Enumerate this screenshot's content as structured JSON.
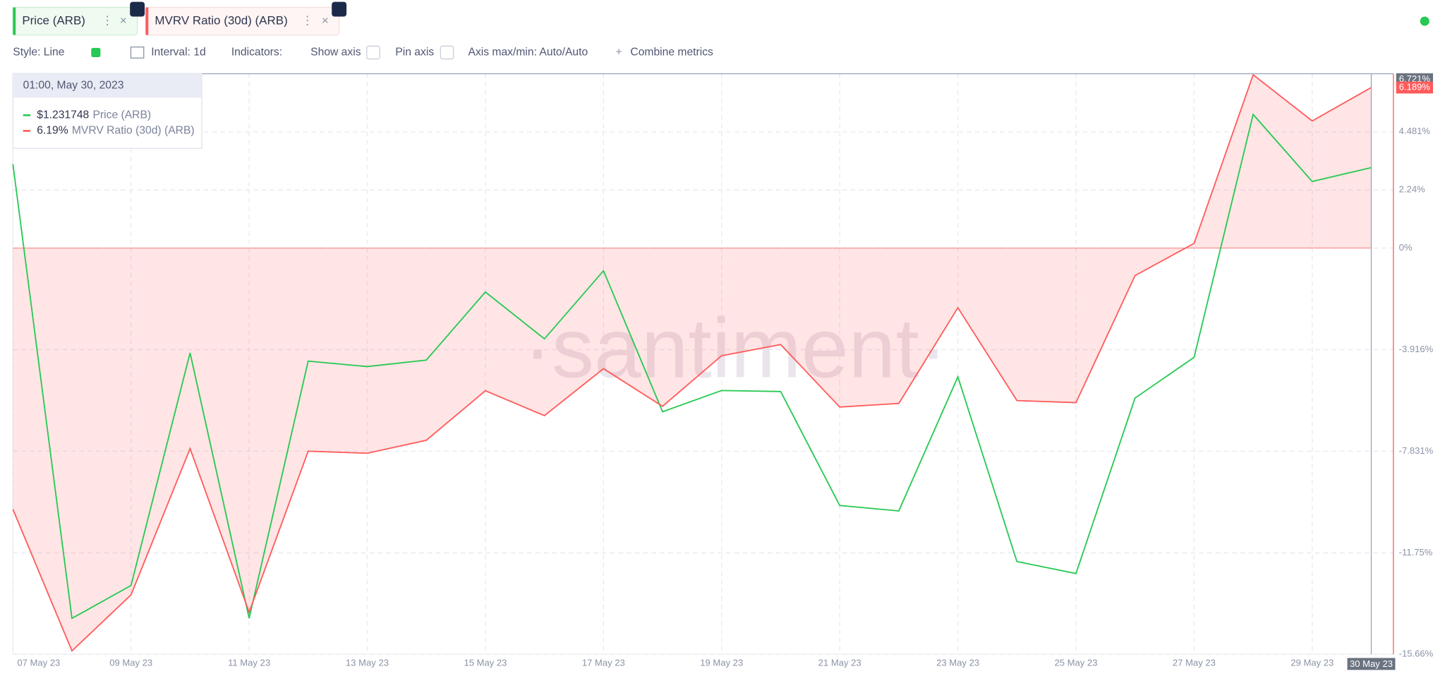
{
  "toolbar": {
    "style": "Style: Line",
    "interval": "Interval: 1d",
    "indicators": "Indicators:",
    "show_axis": "Show axis",
    "pin_axis": "Pin axis",
    "axis_minmax": "Axis max/min: Auto/Auto",
    "combine": "Combine metrics"
  },
  "chart_data": {
    "type": "line",
    "watermark": "·santiment·",
    "categories": [
      "07 May 23",
      null,
      "09 May 23",
      null,
      "11 May 23",
      null,
      "13 May 23",
      null,
      "15 May 23",
      null,
      "17 May 23",
      null,
      "19 May 23",
      null,
      "21 May 23",
      null,
      "23 May 23",
      null,
      "25 May 23",
      null,
      "27 May 23",
      null,
      "29 May 23",
      "30 May 23"
    ],
    "series": [
      {
        "name": "Price (ARB)",
        "color": "#26c953",
        "axis": "y2",
        "values": [
          1.2328,
          1.1,
          1.1096,
          1.1776,
          1.1,
          1.1752,
          1.1736,
          1.1755,
          1.1954,
          1.1817,
          1.2016,
          1.1604,
          1.1666,
          1.1663,
          1.133,
          1.1314,
          1.1706,
          1.1166,
          1.1131,
          1.1644,
          1.1763,
          1.2473,
          1.2277,
          1.231748
        ]
      },
      {
        "name": "MVRV Ratio (30d) (ARB)",
        "color": "#ff5b5b",
        "values": [
          -10.07,
          -15.53,
          -13.37,
          -7.73,
          -14.04,
          -7.83,
          -7.91,
          -7.41,
          -5.5,
          -6.46,
          -4.65,
          -6.1,
          -4.15,
          -3.72,
          -6.13,
          -5.99,
          -2.3,
          -5.88,
          -5.96,
          -1.06,
          0.18,
          6.68,
          4.9,
          6.19
        ]
      }
    ],
    "ylim": [
      -15.66,
      6.721
    ],
    "yticks": [
      {
        "value": 4.481,
        "label": "4.481%"
      },
      {
        "value": 2.24,
        "label": "2.24%"
      },
      {
        "value": 0,
        "label": "0%"
      },
      {
        "value": -3.916,
        "label": "-3.916%"
      },
      {
        "value": -7.831,
        "label": "-7.831%"
      },
      {
        "value": -11.75,
        "label": "-11.75%"
      },
      {
        "value": -15.66,
        "label": "-15.66%"
      }
    ],
    "y2lim": [
      1.0895,
      1.2592
    ],
    "axis_markers": [
      {
        "value": 6.721,
        "label": "6.721%"
      },
      {
        "value": 6.189,
        "label": "6.189%"
      }
    ],
    "tooltip": {
      "title": "01:00, May 30, 2023",
      "labels": [
        "$1.231748",
        "6.19%"
      ]
    },
    "grid": true
  }
}
